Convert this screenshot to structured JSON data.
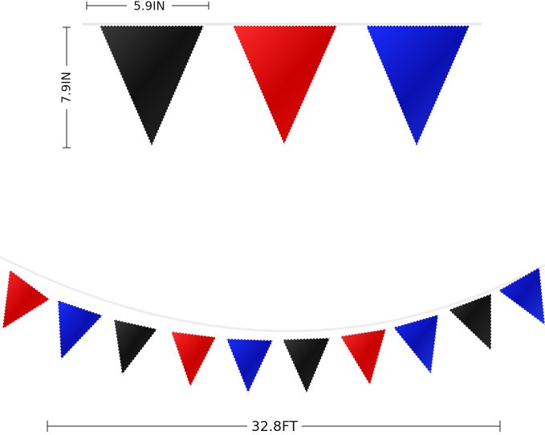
{
  "dimensions": {
    "flag_width": "5.9IN",
    "flag_height": "7.9IN",
    "total_length": "32.8FT"
  }
}
